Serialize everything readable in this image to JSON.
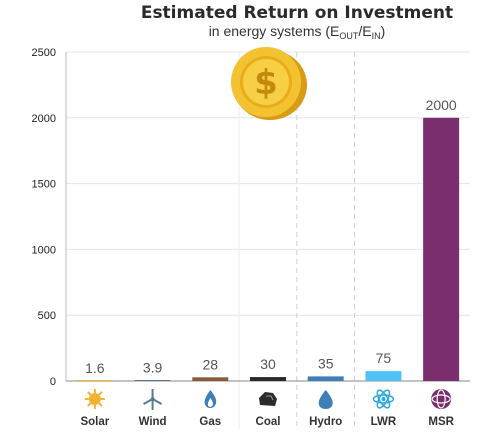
{
  "chart_data": {
    "type": "bar",
    "title": "Estimated Return on Investment",
    "subtitle": {
      "prefix": "in energy systems (E",
      "sub1": "OUT",
      "middle": "/E",
      "sub2": "IN",
      "suffix": ")"
    },
    "categories": [
      "Solar",
      "Wind",
      "Gas",
      "Coal",
      "Hydro",
      "LWR",
      "MSR"
    ],
    "values": [
      1.6,
      3.9,
      28,
      30,
      35,
      75,
      2000
    ],
    "value_labels": [
      "1.6",
      "3.9",
      "28",
      "30",
      "35",
      "75",
      "2000"
    ],
    "bar_colors": [
      "#f2b233",
      "#5a7a8c",
      "#8a5a3c",
      "#2b2b2b",
      "#3f7fb8",
      "#4fc3f7",
      "#7a2e6e"
    ],
    "category_icons": [
      "sun-icon",
      "wind-turbine-icon",
      "gas-flame-icon",
      "coal-icon",
      "water-drop-icon",
      "atom-icon",
      "molten-salt-reactor-icon"
    ],
    "ylim": [
      0,
      2500
    ],
    "yticks": [
      0,
      500,
      1000,
      1500,
      2000,
      2500
    ],
    "grid": true,
    "xlabel": "",
    "ylabel": "",
    "decoration": "gold-dollar-coin-icon"
  }
}
